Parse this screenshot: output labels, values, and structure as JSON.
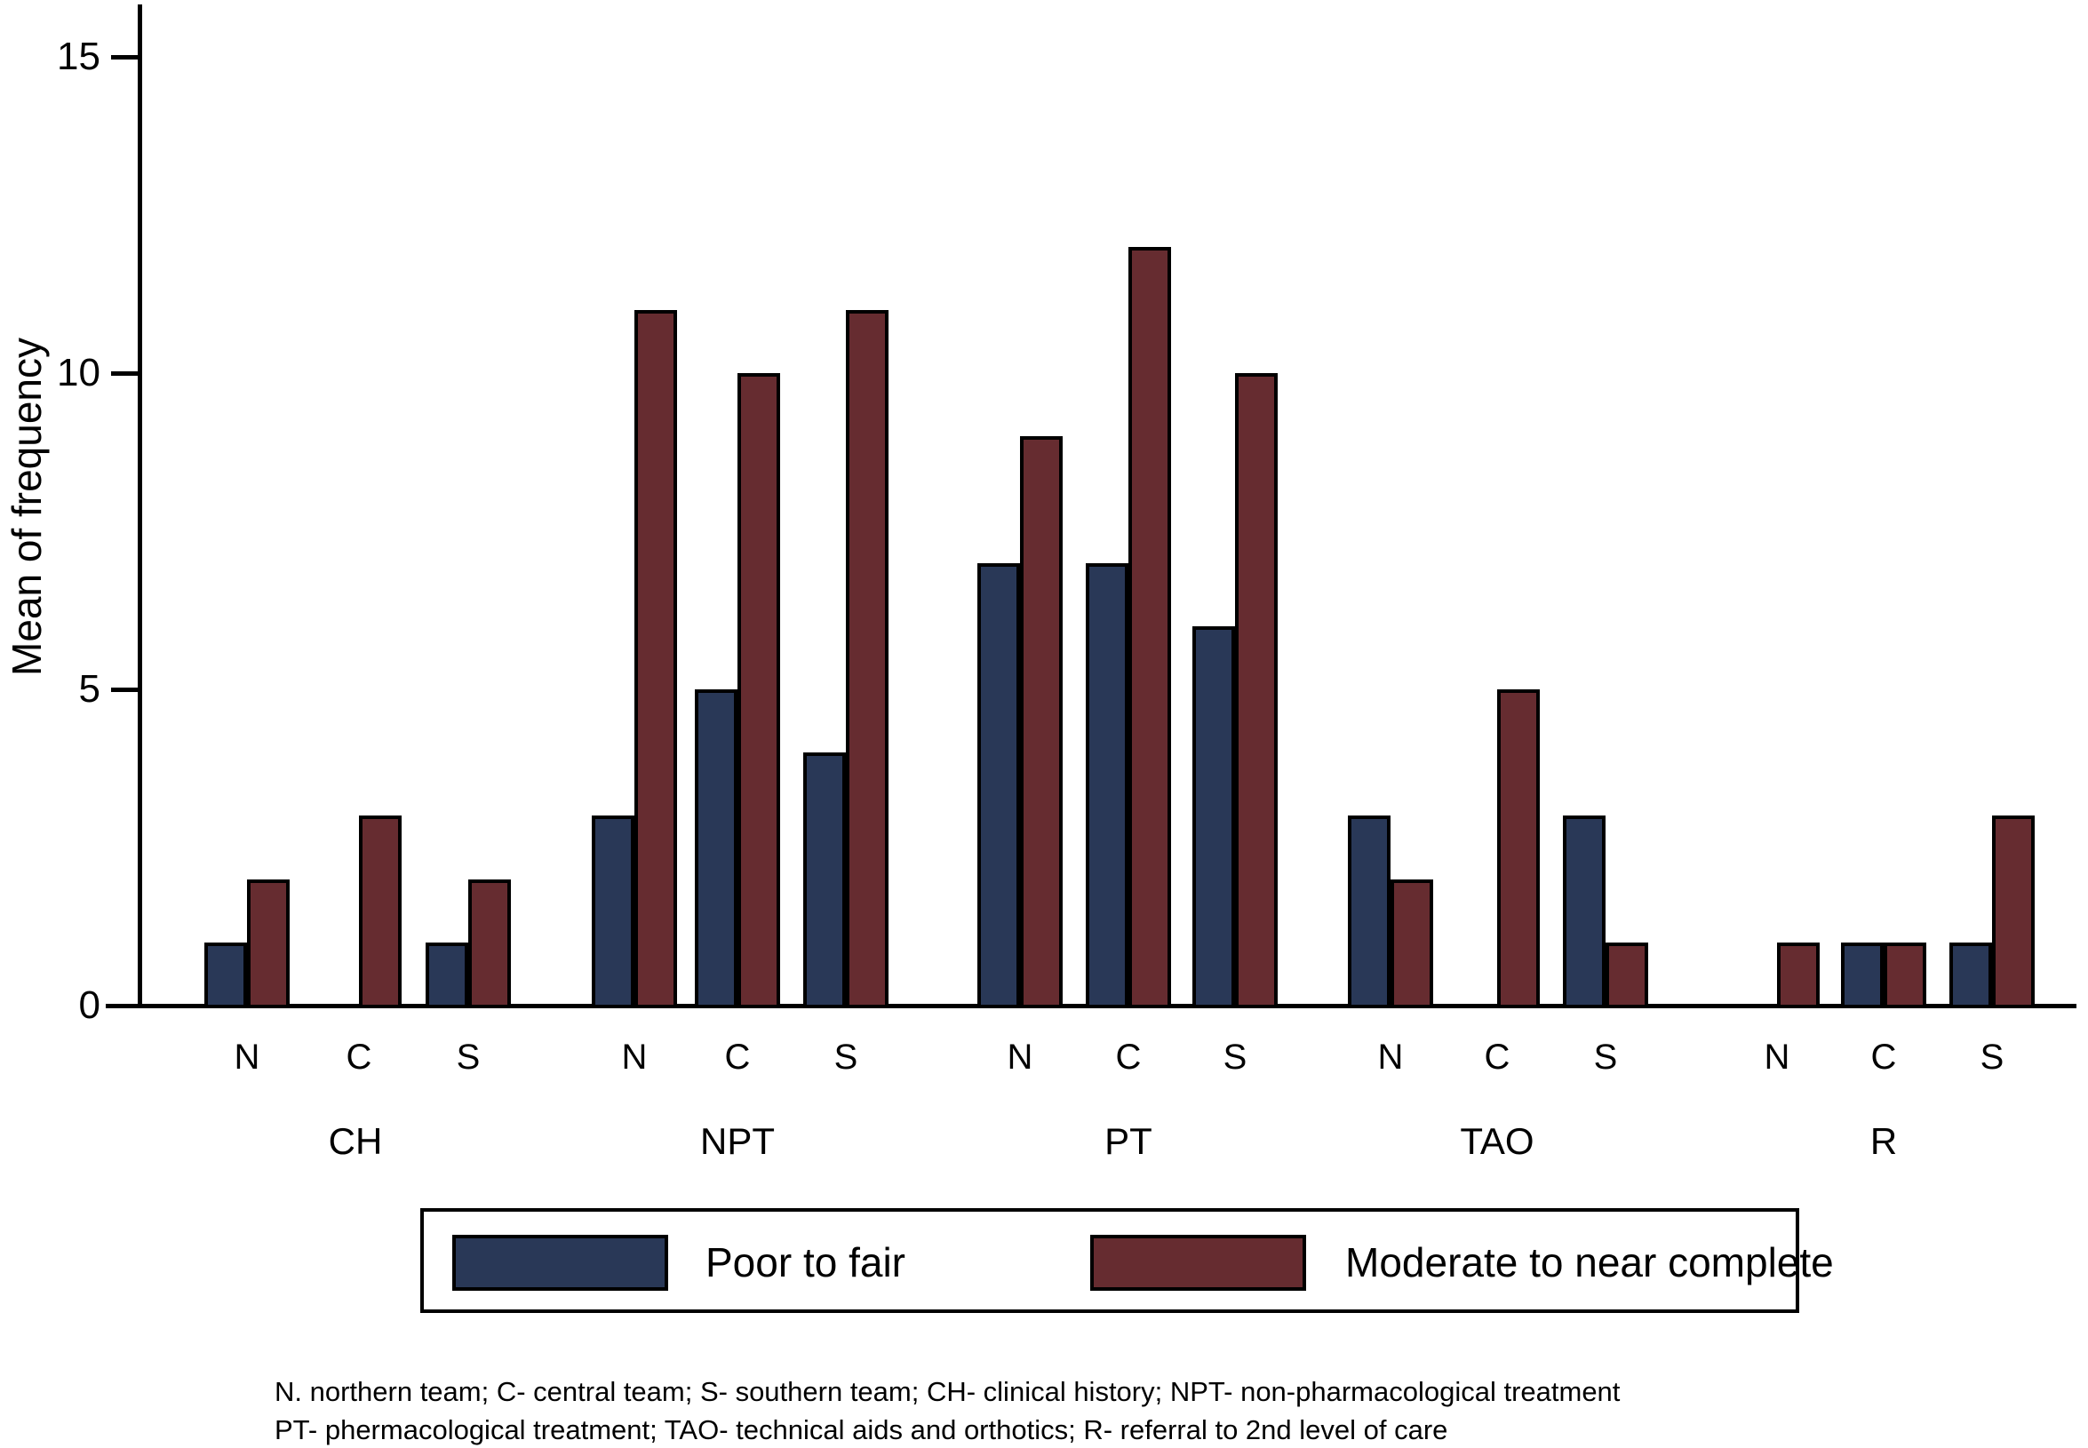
{
  "figure": {
    "caption_line1": "N. northern team; C- central team; S- southern team; CH- clinical history; NPT- non-pharmacological treatment",
    "caption_line2": "PT- phermacological treatment; TAO- technical aids and orthotics; R- referral to 2nd level of care"
  },
  "legend": {
    "items": [
      {
        "label": "Poor to fair",
        "color": "#293857"
      },
      {
        "label": "Moderate to near complete",
        "color": "#662c30"
      }
    ]
  },
  "chart_data": {
    "type": "bar",
    "title": "",
    "xlabel": "",
    "ylabel": "Mean of frequency",
    "ylim": [
      0,
      16
    ],
    "yticks": [
      0,
      5,
      10,
      15
    ],
    "grid": false,
    "legend_position": "bottom",
    "groups": [
      "CH",
      "NPT",
      "PT",
      "TAO",
      "R"
    ],
    "subcategories": [
      "N",
      "C",
      "S"
    ],
    "series": [
      {
        "name": "Poor to fair",
        "color": "#293857",
        "values": [
          [
            1,
            0,
            1
          ],
          [
            3,
            5,
            4
          ],
          [
            7,
            7,
            6
          ],
          [
            3,
            0,
            3
          ],
          [
            0,
            1,
            1
          ]
        ]
      },
      {
        "name": "Moderate to near complete",
        "color": "#662c30",
        "values": [
          [
            2,
            3,
            2
          ],
          [
            11,
            10,
            11
          ],
          [
            9,
            12,
            10
          ],
          [
            2,
            5,
            1
          ],
          [
            1,
            1,
            3
          ]
        ]
      }
    ]
  }
}
